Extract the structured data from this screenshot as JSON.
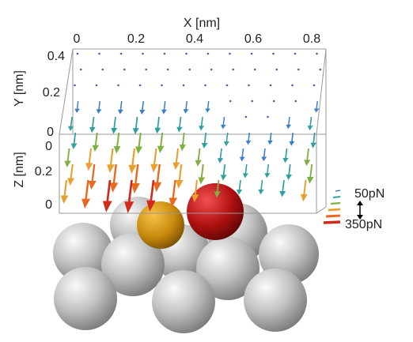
{
  "axes": {
    "x": {
      "label": "X [nm]",
      "ticks": [
        "0",
        "0.2",
        "0.4",
        "0.6",
        "0.8"
      ]
    },
    "y": {
      "label": "Y [nm]",
      "ticks": [
        "0.4",
        "0.2",
        "0"
      ]
    },
    "z": {
      "label": "Z [nm]",
      "ticks": [
        "0",
        "0.2",
        "0"
      ]
    }
  },
  "legend": {
    "small": "50pN",
    "large": "350pN"
  }
}
